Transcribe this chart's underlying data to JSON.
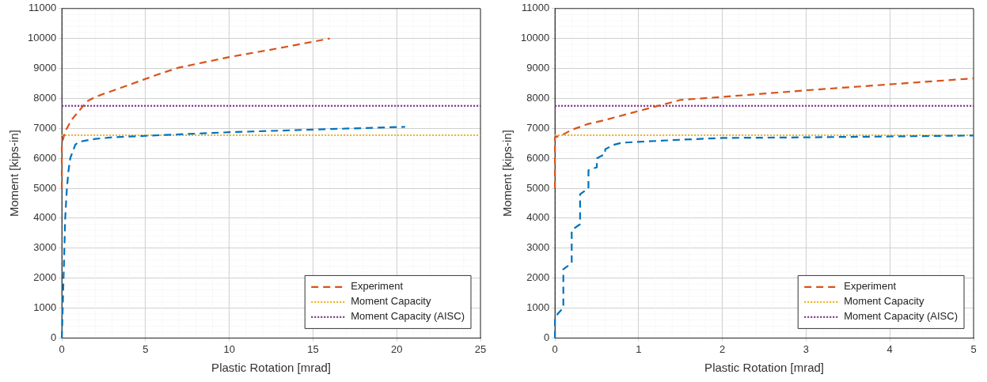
{
  "chart_data": [
    {
      "type": "line",
      "xlabel": "Plastic Rotation [mrad]",
      "ylabel": "Moment [kips-in]",
      "xlim": [
        0,
        25
      ],
      "xticks": [
        0,
        5,
        10,
        15,
        20,
        25
      ],
      "ylim": [
        0,
        11000
      ],
      "yticks": [
        0,
        1000,
        2000,
        3000,
        4000,
        5000,
        6000,
        7000,
        8000,
        9000,
        10000,
        11000
      ],
      "grid": true,
      "legend": "bottom right",
      "marker": "none",
      "series": [
        {
          "color": "#0072bd",
          "line_style": "dashed",
          "x": [
            0,
            0.05,
            0.1,
            0.2,
            0.3,
            0.4,
            0.5,
            0.8,
            1,
            2,
            3,
            5,
            7,
            10,
            15,
            20.5
          ],
          "values": [
            0,
            1000,
            2000,
            4000,
            5000,
            5600,
            6000,
            6450,
            6550,
            6650,
            6700,
            6750,
            6800,
            6870,
            6960,
            7050
          ]
        },
        {
          "name": "Experiment",
          "color": "#d95319",
          "line_style": "dashed",
          "x": [
            0,
            0,
            0.2,
            0.6,
            1.5,
            2,
            3,
            4,
            5,
            6,
            7,
            10,
            13,
            16
          ],
          "values": [
            5000,
            6500,
            6900,
            7300,
            7900,
            8050,
            8250,
            8450,
            8650,
            8850,
            9030,
            9380,
            9680,
            10000
          ]
        },
        {
          "name": "Moment Capacity",
          "color": "#edb120",
          "line_style": "dotted",
          "x": [
            0,
            25
          ],
          "values": [
            6770,
            6770
          ]
        },
        {
          "name": "Moment Capacity (AISC)",
          "color": "#7e2f8e",
          "line_style": "dotted",
          "x": [
            0,
            25
          ],
          "values": [
            7750,
            7750
          ]
        }
      ]
    },
    {
      "type": "line",
      "xlabel": "Plastic Rotation [mrad]",
      "ylabel": "Moment [kips-in]",
      "xlim": [
        0,
        5
      ],
      "xticks": [
        0,
        1,
        2,
        3,
        4,
        5
      ],
      "ylim": [
        0,
        11000
      ],
      "yticks": [
        0,
        1000,
        2000,
        3000,
        4000,
        5000,
        6000,
        7000,
        8000,
        9000,
        10000,
        11000
      ],
      "grid": true,
      "legend": "bottom right",
      "marker": "none",
      "series": [
        {
          "color": "#0072bd",
          "line_style": "dashed",
          "x": [
            0,
            0,
            0.08,
            0.1,
            0.1,
            0.2,
            0.2,
            0.3,
            0.3,
            0.4,
            0.4,
            0.5,
            0.5,
            0.6,
            0.6,
            0.7,
            0.8,
            1,
            1.5,
            2,
            3,
            4,
            5
          ],
          "values": [
            0,
            700,
            950,
            1000,
            2300,
            2500,
            3600,
            3800,
            4800,
            5000,
            5600,
            5700,
            6000,
            6150,
            6300,
            6450,
            6520,
            6550,
            6620,
            6680,
            6700,
            6730,
            6760
          ]
        },
        {
          "name": "Experiment",
          "color": "#d95319",
          "line_style": "dashed",
          "x": [
            0,
            0,
            0.1,
            0.2,
            0.4,
            0.6,
            1,
            1.3,
            1.5,
            2,
            3,
            4,
            5
          ],
          "values": [
            5000,
            6700,
            6800,
            6950,
            7150,
            7280,
            7580,
            7800,
            7950,
            8050,
            8270,
            8470,
            8670
          ]
        },
        {
          "name": "Moment Capacity",
          "color": "#edb120",
          "line_style": "dotted",
          "x": [
            0,
            5
          ],
          "values": [
            6770,
            6770
          ]
        },
        {
          "name": "Moment Capacity (AISC)",
          "color": "#7e2f8e",
          "line_style": "dotted",
          "x": [
            0,
            5
          ],
          "values": [
            7750,
            7750
          ]
        }
      ]
    }
  ]
}
